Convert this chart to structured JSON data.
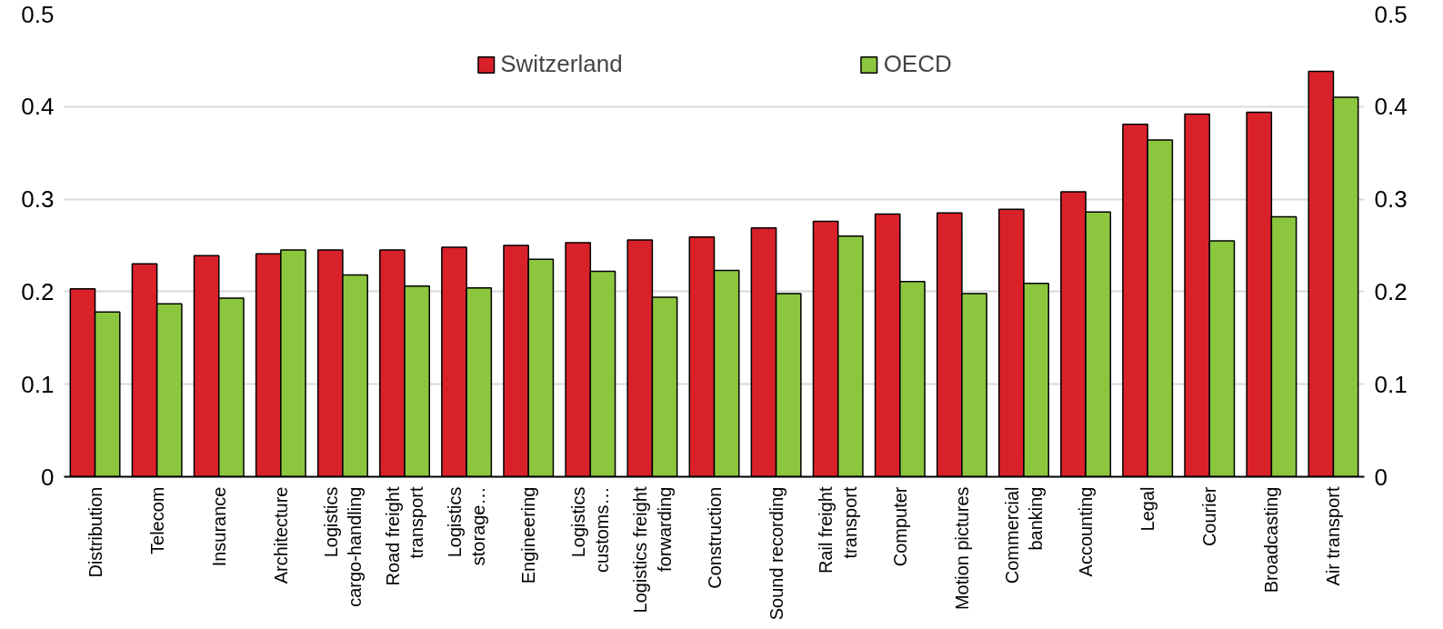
{
  "chart_data": {
    "type": "bar",
    "categories": [
      "Distribution",
      "Telecom",
      "Insurance",
      "Architecture",
      "Logistics cargo-handling",
      "Road freight transport",
      "Logistics storage…",
      "Engineering",
      "Logistics customs…",
      "Logistics freight forwarding",
      "Construction",
      "Sound recording",
      "Rail freight transport",
      "Computer",
      "Motion pictures",
      "Commercial banking",
      "Accounting",
      "Legal",
      "Courier",
      "Broadcasting",
      "Air transport"
    ],
    "series": [
      {
        "name": "Switzerland",
        "color": "#d9212a",
        "values": [
          0.203,
          0.23,
          0.239,
          0.241,
          0.245,
          0.245,
          0.248,
          0.25,
          0.253,
          0.256,
          0.259,
          0.269,
          0.276,
          0.284,
          0.285,
          0.289,
          0.308,
          0.381,
          0.392,
          0.394,
          0.438
        ]
      },
      {
        "name": "OECD",
        "color": "#8cc63f",
        "values": [
          0.178,
          0.187,
          0.193,
          0.245,
          0.218,
          0.206,
          0.204,
          0.235,
          0.222,
          0.194,
          0.223,
          0.198,
          0.26,
          0.211,
          0.198,
          0.209,
          0.286,
          0.364,
          0.255,
          0.281,
          0.41
        ]
      }
    ],
    "ylim": [
      0,
      0.5
    ],
    "yticks": [
      0,
      0.1,
      0.2,
      0.3,
      0.4,
      0.5
    ],
    "y2lim": [
      0,
      0.5
    ],
    "y2ticks": [
      0,
      0.1,
      0.2,
      0.3,
      0.4,
      0.5
    ],
    "grid": "y",
    "legend": "top"
  }
}
